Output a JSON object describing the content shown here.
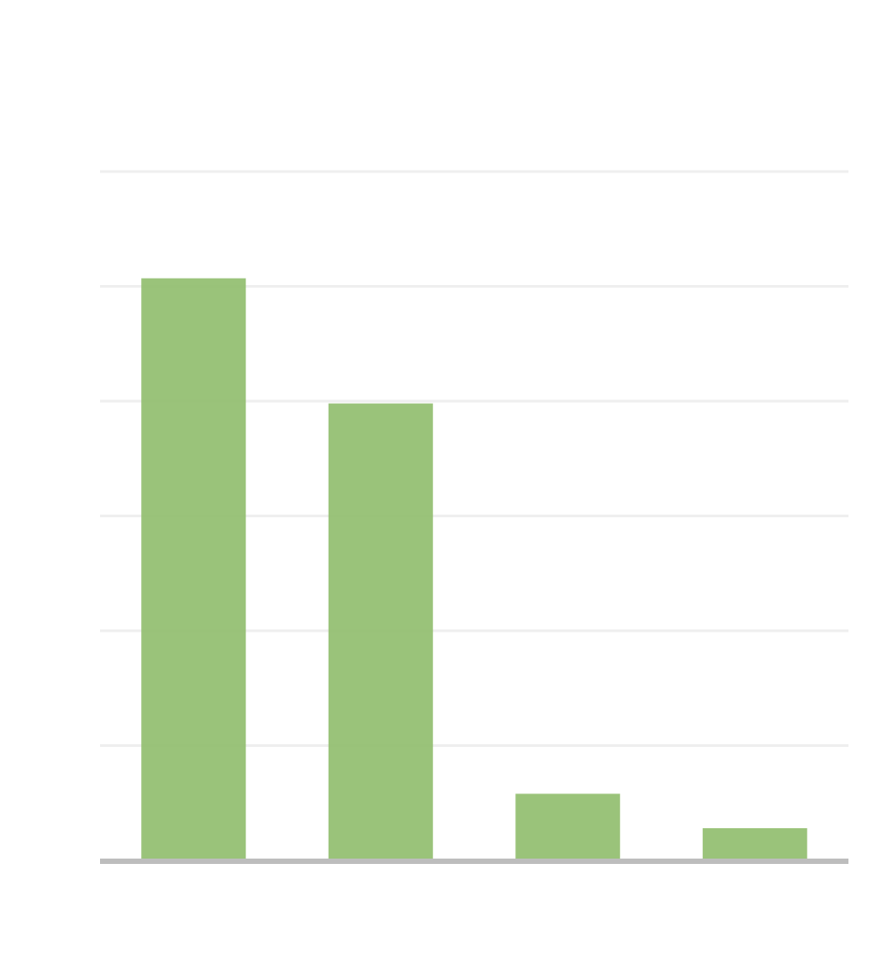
{
  "chart_data": {
    "type": "bar",
    "categories": [
      "",
      "",
      "",
      ""
    ],
    "values": [
      5.07,
      3.98,
      0.58,
      0.28
    ],
    "ylim": [
      0,
      6
    ],
    "grid": true,
    "legend": "none",
    "colors": {
      "bar": "#8fbc6b",
      "grid": "#efefef",
      "baseline": "#bdbdbd"
    }
  }
}
